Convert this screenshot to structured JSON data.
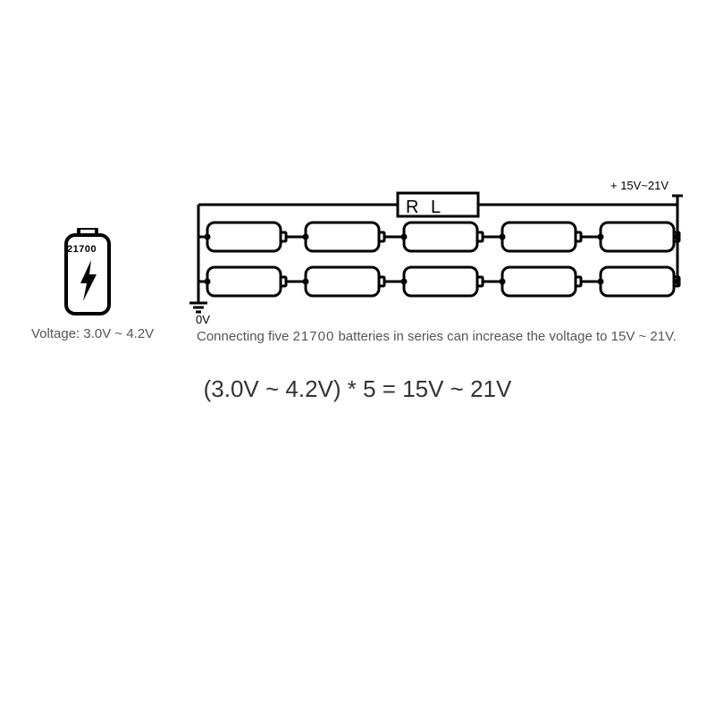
{
  "battery": {
    "model": "21700",
    "voltage_label": "Voltage: 3.0V ~ 4.2V"
  },
  "circuit": {
    "load_label": "R L",
    "positive_terminal": "+ 15V~21V",
    "negative_terminal": "0V",
    "rows": 2,
    "cells_per_row": 5,
    "cell_stroke": "#000000",
    "wire_stroke": "#000000"
  },
  "caption_parts": {
    "p1": "Connecting five ",
    "model": "21700",
    "p2": "  batteries in series can increase the voltage to 15V ~ 21V."
  },
  "formula": "(3.0V ~ 4.2V) * 5 = 15V ~ 21V",
  "colors": {
    "bg": "#ffffff",
    "text": "#000000",
    "muted": "#555555"
  }
}
